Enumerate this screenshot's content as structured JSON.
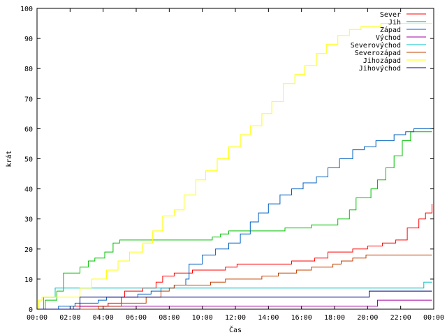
{
  "chart_data": {
    "type": "line",
    "title": "",
    "xlabel": "Čas",
    "ylabel": "krát",
    "ylim": [
      0,
      100
    ],
    "xlim": [
      0,
      24
    ],
    "grid": false,
    "legend_position": "top-right",
    "x_tick_labels": [
      "00:00",
      "02:00",
      "04:00",
      "06:00",
      "08:00",
      "10:00",
      "12:00",
      "14:00",
      "16:00",
      "18:00",
      "20:00",
      "22:00",
      "00:00"
    ],
    "y_tick_labels": [
      "0",
      "10",
      "20",
      "30",
      "40",
      "50",
      "60",
      "70",
      "80",
      "90",
      "100"
    ],
    "series": [
      {
        "name": "Sever",
        "color": "#ff0000",
        "points": [
          [
            0,
            0
          ],
          [
            2.2,
            1
          ],
          [
            4.3,
            2
          ],
          [
            5.1,
            4
          ],
          [
            5.3,
            6
          ],
          [
            6.4,
            7
          ],
          [
            7.2,
            9
          ],
          [
            7.6,
            11
          ],
          [
            8.3,
            12
          ],
          [
            9.4,
            13
          ],
          [
            11.4,
            14
          ],
          [
            12.1,
            15
          ],
          [
            15.4,
            16
          ],
          [
            16.8,
            17
          ],
          [
            17.6,
            19
          ],
          [
            19.1,
            20
          ],
          [
            20,
            21
          ],
          [
            20.9,
            22
          ],
          [
            21.7,
            23
          ],
          [
            22.4,
            27
          ],
          [
            23.1,
            30
          ],
          [
            23.5,
            32
          ],
          [
            23.9,
            35
          ]
        ]
      },
      {
        "name": "Jih",
        "color": "#00c000",
        "points": [
          [
            0,
            0
          ],
          [
            0.3,
            0
          ],
          [
            0.5,
            3
          ],
          [
            1.2,
            6
          ],
          [
            1.6,
            12
          ],
          [
            2.6,
            14
          ],
          [
            3.1,
            16
          ],
          [
            3.5,
            17
          ],
          [
            4.1,
            19
          ],
          [
            4.6,
            22
          ],
          [
            5,
            23
          ],
          [
            10,
            23
          ],
          [
            10.6,
            24
          ],
          [
            11.1,
            25
          ],
          [
            11.6,
            26
          ],
          [
            14,
            26
          ],
          [
            15,
            27
          ],
          [
            16,
            27
          ],
          [
            16.6,
            28
          ],
          [
            17.9,
            28
          ],
          [
            18.2,
            30
          ],
          [
            18.9,
            33
          ],
          [
            19.3,
            37
          ],
          [
            20.2,
            40
          ],
          [
            20.6,
            43
          ],
          [
            21.1,
            47
          ],
          [
            21.6,
            51
          ],
          [
            22.1,
            56
          ],
          [
            22.6,
            59
          ],
          [
            23.9,
            59
          ]
        ]
      },
      {
        "name": "Západ",
        "color": "#0060c0",
        "points": [
          [
            0,
            0
          ],
          [
            1.3,
            1
          ],
          [
            2.3,
            2
          ],
          [
            3.7,
            3
          ],
          [
            4.2,
            4
          ],
          [
            6.1,
            5
          ],
          [
            6.9,
            6
          ],
          [
            7.5,
            7
          ],
          [
            8.3,
            8
          ],
          [
            9,
            10
          ],
          [
            9.2,
            15
          ],
          [
            10,
            18
          ],
          [
            10.8,
            20
          ],
          [
            11.6,
            22
          ],
          [
            12.3,
            25
          ],
          [
            12.9,
            29
          ],
          [
            13.4,
            32
          ],
          [
            14,
            35
          ],
          [
            14.7,
            38
          ],
          [
            15.4,
            40
          ],
          [
            16.1,
            42
          ],
          [
            16.9,
            44
          ],
          [
            17.6,
            47
          ],
          [
            18.3,
            50
          ],
          [
            19.1,
            53
          ],
          [
            19.8,
            54
          ],
          [
            20.5,
            56
          ],
          [
            21.1,
            56
          ],
          [
            21.6,
            58
          ],
          [
            22.3,
            59
          ],
          [
            22.8,
            60
          ],
          [
            23.9,
            60
          ]
        ]
      },
      {
        "name": "Východ",
        "color": "#a000a0",
        "points": [
          [
            0,
            0
          ],
          [
            2.6,
            1
          ],
          [
            20.5,
            1
          ],
          [
            20.6,
            3
          ],
          [
            23.9,
            3
          ]
        ]
      },
      {
        "name": "Severovýchod",
        "color": "#00c0c0",
        "points": [
          [
            0,
            0
          ],
          [
            0.4,
            4
          ],
          [
            1,
            4
          ],
          [
            1.1,
            7
          ],
          [
            23.1,
            7
          ],
          [
            23.4,
            9
          ],
          [
            23.9,
            9
          ]
        ]
      },
      {
        "name": "Severozápad",
        "color": "#c04000",
        "points": [
          [
            0,
            0
          ],
          [
            3.7,
            1
          ],
          [
            5.1,
            2
          ],
          [
            6.6,
            4
          ],
          [
            7.5,
            6
          ],
          [
            8,
            7
          ],
          [
            8.3,
            8
          ],
          [
            10.5,
            9
          ],
          [
            11.4,
            10
          ],
          [
            13.6,
            11
          ],
          [
            14.6,
            12
          ],
          [
            15.7,
            13
          ],
          [
            16.6,
            14
          ],
          [
            17.9,
            15
          ],
          [
            18.4,
            16
          ],
          [
            19.1,
            17
          ],
          [
            19.9,
            18
          ],
          [
            23.9,
            18
          ]
        ]
      },
      {
        "name": "Jihozápad",
        "color": "#ffff00",
        "points": [
          [
            0,
            0
          ],
          [
            0.1,
            3
          ],
          [
            0.3,
            4
          ],
          [
            1.7,
            4
          ],
          [
            2.6,
            7
          ],
          [
            3.3,
            10
          ],
          [
            4.2,
            13
          ],
          [
            4.9,
            16
          ],
          [
            5.6,
            19
          ],
          [
            6.4,
            22
          ],
          [
            7,
            26
          ],
          [
            7.6,
            31
          ],
          [
            8.3,
            33
          ],
          [
            8.9,
            38
          ],
          [
            9.6,
            43
          ],
          [
            10.2,
            46
          ],
          [
            10.9,
            50
          ],
          [
            11.6,
            54
          ],
          [
            12.3,
            58
          ],
          [
            12.9,
            61
          ],
          [
            13.6,
            65
          ],
          [
            14.2,
            69
          ],
          [
            14.9,
            75
          ],
          [
            15.6,
            78
          ],
          [
            16.2,
            81
          ],
          [
            16.9,
            85
          ],
          [
            17.5,
            88
          ],
          [
            18.2,
            91
          ],
          [
            18.9,
            93
          ],
          [
            19.6,
            94
          ],
          [
            20.3,
            94
          ],
          [
            20.8,
            95
          ],
          [
            23.9,
            95
          ]
        ]
      },
      {
        "name": "Jihovýchod",
        "color": "#000080",
        "points": [
          [
            0,
            0
          ],
          [
            2.6,
            4
          ],
          [
            19.8,
            4
          ],
          [
            20.1,
            6
          ],
          [
            23.9,
            6
          ]
        ]
      }
    ]
  }
}
